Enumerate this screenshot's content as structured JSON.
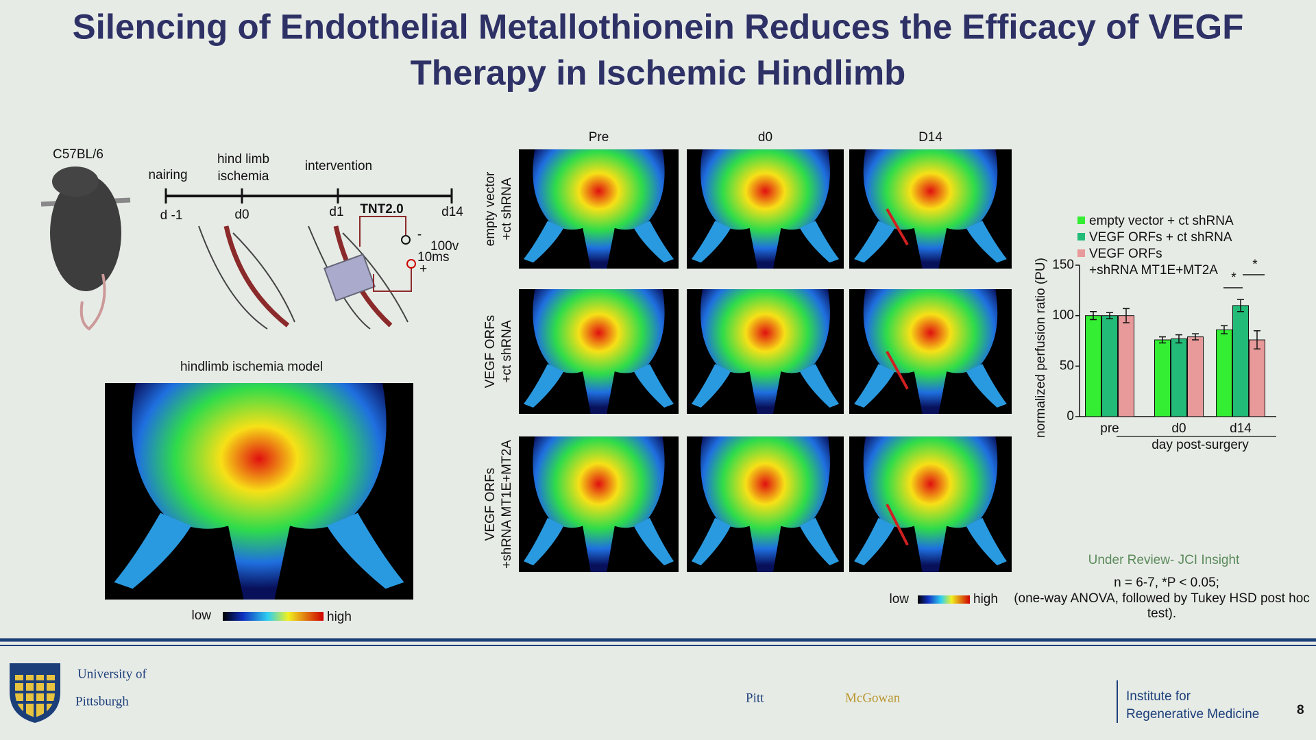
{
  "title": [
    "Silencing of Endothelial Metallothionein Reduces the Efficacy of VEGF",
    "Therapy in Ischemic Hindlimb"
  ],
  "diagram": {
    "strain": "C57BL/6",
    "steps": [
      "nairing",
      "hind limb",
      "ischemia",
      "intervention"
    ],
    "days": [
      "d -1",
      "d0",
      "d1",
      "d14"
    ],
    "device": "TNT2.0",
    "electrode": [
      "-",
      "100v",
      "10ms",
      "+"
    ]
  },
  "model": {
    "title": "hindlimb ischemia model",
    "low": "low",
    "high": "high"
  },
  "images": {
    "columns": [
      "Pre",
      "d0",
      "D14"
    ],
    "rows": [
      [
        "empty vector",
        "+ct shRNA"
      ],
      [
        "VEGF ORFs",
        "+ct shRNA"
      ],
      [
        "VEGF ORFs",
        "+shRNA MT1E+MT2A"
      ]
    ],
    "low": "low",
    "high": "high"
  },
  "chart_data": {
    "type": "bar",
    "y_label": "normalized perfusion ratio (PU)",
    "x_label": "day post-surgery",
    "categories": [
      "pre",
      "d0",
      "d14"
    ],
    "series": [
      {
        "name": "empty vector + ct shRNA",
        "color": "#33ee33",
        "values": [
          100,
          76,
          86
        ],
        "errors": [
          4,
          3,
          4
        ]
      },
      {
        "name": "VEGF ORFs + ct shRNA",
        "color": "#22bb77",
        "values": [
          100,
          77,
          110
        ],
        "errors": [
          3,
          4,
          6
        ]
      },
      {
        "name": "VEGF ORFs\n+shRNA MT1E+MT2A",
        "color": "#e89a9a",
        "values": [
          100,
          79,
          76
        ],
        "errors": [
          7,
          3,
          9
        ]
      }
    ],
    "ylim": [
      0,
      150
    ],
    "yticks": [
      0,
      50,
      100,
      150
    ],
    "annotations": [
      "*",
      "*"
    ]
  },
  "notes": [
    "Under Review- JCI Insight",
    "n = 6-7,  *P < 0.05;",
    "(one-way ANOVA, followed by Tukey HSD post hoc test)."
  ],
  "footer": {
    "university": [
      "University of",
      "Pittsburgh"
    ],
    "pitt": "Pitt",
    "mcgowan": "McGowan",
    "institute": [
      "Institute for",
      "Regenerative Medicine"
    ],
    "page": "8"
  }
}
